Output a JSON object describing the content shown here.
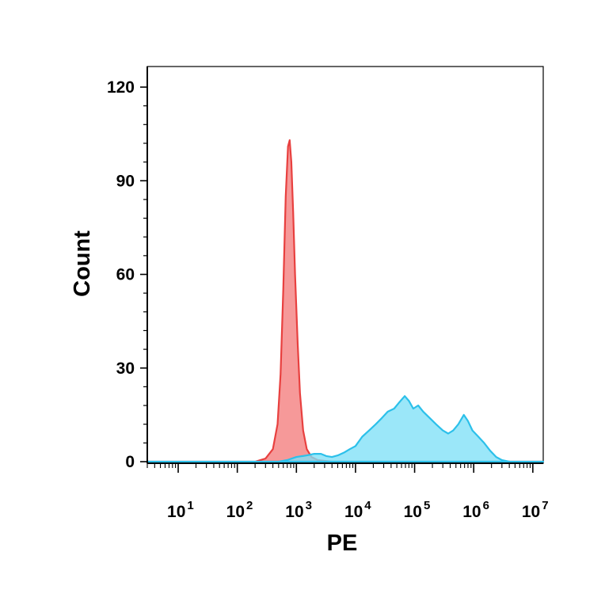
{
  "chart_data": {
    "type": "area",
    "title": "",
    "xlabel": "PE",
    "ylabel": "Count",
    "xscale": "log",
    "xlim": [
      3,
      15000000
    ],
    "ylim": [
      0,
      120
    ],
    "y_ticks": [
      "0",
      "30",
      "60",
      "90",
      "120"
    ],
    "x_ticks": [
      {
        "base": "10",
        "exp": "1",
        "value": 10
      },
      {
        "base": "10",
        "exp": "2",
        "value": 100
      },
      {
        "base": "10",
        "exp": "3",
        "value": 1000
      },
      {
        "base": "10",
        "exp": "4",
        "value": 10000
      },
      {
        "base": "10",
        "exp": "5",
        "value": 100000
      },
      {
        "base": "10",
        "exp": "6",
        "value": 1000000
      },
      {
        "base": "10",
        "exp": "7",
        "value": 10000000
      }
    ],
    "grid": false,
    "legend": "none",
    "series": [
      {
        "color": "#f47c7c",
        "stroke": "#e8403f",
        "points": [
          [
            3,
            0
          ],
          [
            100,
            0
          ],
          [
            200,
            0
          ],
          [
            300,
            1
          ],
          [
            400,
            4
          ],
          [
            480,
            12
          ],
          [
            540,
            28
          ],
          [
            600,
            55
          ],
          [
            660,
            85
          ],
          [
            720,
            101
          ],
          [
            770,
            103
          ],
          [
            820,
            96
          ],
          [
            880,
            80
          ],
          [
            950,
            60
          ],
          [
            1050,
            38
          ],
          [
            1150,
            22
          ],
          [
            1300,
            10
          ],
          [
            1500,
            4
          ],
          [
            1800,
            1.5
          ],
          [
            2300,
            0.5
          ],
          [
            4000,
            0
          ],
          [
            15000000,
            0
          ]
        ]
      },
      {
        "color": "#7fe0f7",
        "stroke": "#2cc0ea",
        "points": [
          [
            3,
            0
          ],
          [
            500,
            0
          ],
          [
            700,
            0.5
          ],
          [
            1000,
            1.5
          ],
          [
            1500,
            2
          ],
          [
            2000,
            2.5
          ],
          [
            2600,
            2.5
          ],
          [
            3200,
            1.8
          ],
          [
            4000,
            1.5
          ],
          [
            5000,
            2
          ],
          [
            6500,
            3
          ],
          [
            8000,
            4
          ],
          [
            10000,
            5
          ],
          [
            13000,
            8
          ],
          [
            17000,
            10
          ],
          [
            22000,
            12
          ],
          [
            28000,
            14
          ],
          [
            35000,
            16
          ],
          [
            45000,
            17
          ],
          [
            55000,
            19
          ],
          [
            68000,
            21
          ],
          [
            80000,
            19.5
          ],
          [
            95000,
            17
          ],
          [
            115000,
            18
          ],
          [
            140000,
            16
          ],
          [
            180000,
            14
          ],
          [
            230000,
            12
          ],
          [
            300000,
            10
          ],
          [
            370000,
            9
          ],
          [
            450000,
            10
          ],
          [
            550000,
            12
          ],
          [
            680000,
            15
          ],
          [
            800000,
            13
          ],
          [
            950000,
            10
          ],
          [
            1200000,
            8
          ],
          [
            1500000,
            6
          ],
          [
            1900000,
            3.5
          ],
          [
            2400000,
            1.5
          ],
          [
            3000000,
            0.5
          ],
          [
            4000000,
            0
          ],
          [
            15000000,
            0
          ]
        ]
      }
    ]
  }
}
